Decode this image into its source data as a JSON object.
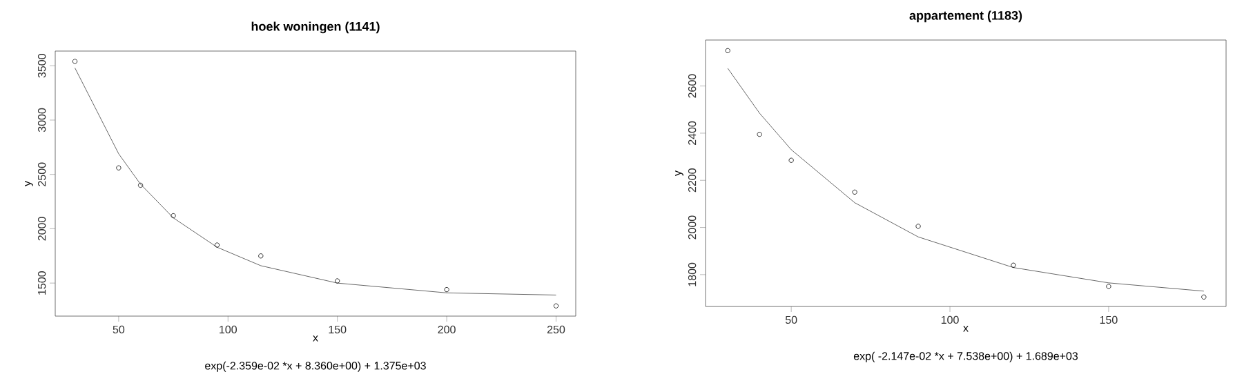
{
  "chart_data": [
    {
      "type": "scatter",
      "title": "hoek woningen (1141)",
      "xlabel": "x",
      "ylabel": "y",
      "annotations": [
        "exp(-2.359e-02 *x + 8.360e+00) + 1.375e+03"
      ],
      "xlim": [
        21,
        259
      ],
      "ylim": [
        1196,
        3635
      ],
      "xticks": [
        50,
        100,
        150,
        200,
        250
      ],
      "yticks": [
        1500,
        2000,
        2500,
        3000,
        3500
      ],
      "grid": false,
      "series": [
        {
          "type": "scatter",
          "marker": "circle",
          "color": "#000000",
          "x": [
            30,
            50,
            60,
            75,
            95,
            115,
            150,
            200,
            250
          ],
          "values": [
            3540,
            2560,
            2400,
            2120,
            1850,
            1750,
            1520,
            1440,
            1290
          ]
        },
        {
          "type": "line",
          "marker": "none",
          "line_style": "solid",
          "color": "#404040",
          "x": [
            30,
            50,
            60,
            75,
            95,
            115,
            150,
            200,
            250
          ],
          "values": [
            3480,
            2690,
            2410,
            2100,
            1830,
            1660,
            1500,
            1410,
            1390
          ]
        }
      ]
    },
    {
      "type": "scatter",
      "title": "appartement (1183)",
      "xlabel": "x",
      "ylabel": "y",
      "annotations": [
        "exp( -2.147e-02 *x +   7.538e+00) +  1.689e+03"
      ],
      "xlim": [
        23,
        187
      ],
      "ylim": [
        1665,
        2795
      ],
      "xticks": [
        50,
        100,
        150
      ],
      "yticks": [
        1800,
        2000,
        2200,
        2400,
        2600
      ],
      "grid": false,
      "series": [
        {
          "type": "scatter",
          "marker": "circle",
          "color": "#000000",
          "x": [
            30,
            40,
            50,
            70,
            90,
            120,
            150,
            180
          ],
          "values": [
            2750,
            2395,
            2285,
            2150,
            2005,
            1840,
            1750,
            1705
          ]
        },
        {
          "type": "line",
          "marker": "none",
          "line_style": "solid",
          "color": "#404040",
          "x": [
            30,
            40,
            50,
            70,
            90,
            120,
            150,
            180
          ],
          "values": [
            2675,
            2485,
            2330,
            2105,
            1960,
            1830,
            1765,
            1730
          ]
        }
      ]
    }
  ]
}
